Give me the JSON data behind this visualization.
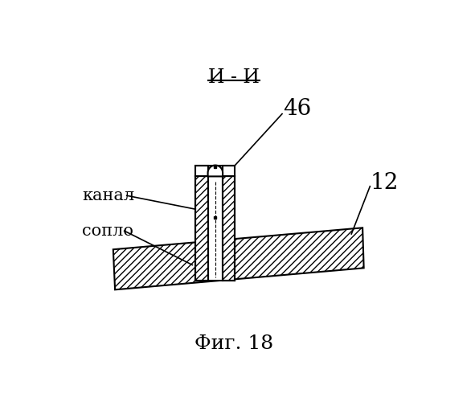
{
  "title": "И - И",
  "fig_caption": "Фиг. 18",
  "label_46": "46",
  "label_12": "12",
  "label_kanal": "канал",
  "label_soplo": "сопло",
  "bg_color": "#ffffff",
  "line_color": "#000000",
  "hatch_pattern": "////",
  "font_size_title": 17,
  "font_size_labels": 15,
  "font_size_numbers": 20,
  "font_size_caption": 18
}
